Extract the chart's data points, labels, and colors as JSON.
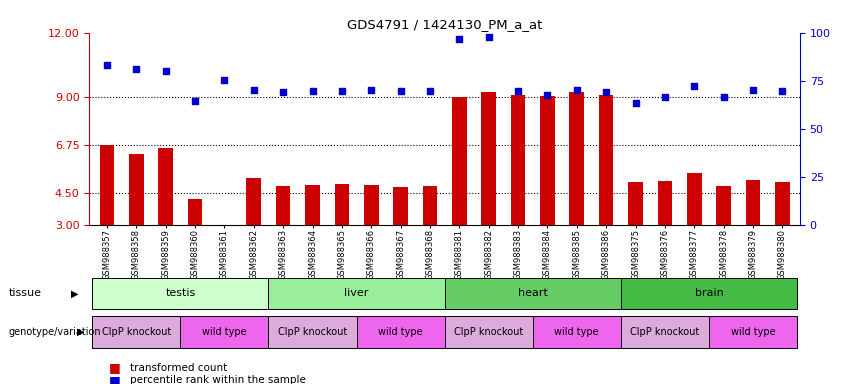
{
  "title": "GDS4791 / 1424130_PM_a_at",
  "samples": [
    "GSM988357",
    "GSM988358",
    "GSM988359",
    "GSM988360",
    "GSM988361",
    "GSM988362",
    "GSM988363",
    "GSM988364",
    "GSM988365",
    "GSM988366",
    "GSM988367",
    "GSM988368",
    "GSM988381",
    "GSM988382",
    "GSM988383",
    "GSM988384",
    "GSM988385",
    "GSM988386",
    "GSM988375",
    "GSM988376",
    "GSM988377",
    "GSM988378",
    "GSM988379",
    "GSM988380"
  ],
  "bar_values": [
    6.75,
    6.3,
    6.6,
    4.2,
    3.0,
    5.2,
    4.8,
    4.85,
    4.9,
    4.85,
    4.75,
    4.8,
    9.0,
    9.2,
    9.1,
    9.05,
    9.2,
    9.1,
    5.0,
    5.05,
    5.4,
    4.8,
    5.1,
    5.0
  ],
  "scatter_values": [
    10.5,
    10.3,
    10.2,
    8.8,
    9.8,
    9.3,
    9.2,
    9.25,
    9.25,
    9.3,
    9.25,
    9.25,
    11.7,
    11.8,
    9.25,
    9.1,
    9.3,
    9.2,
    8.7,
    9.0,
    9.5,
    9.0,
    9.3,
    9.25
  ],
  "ylim_left": [
    3,
    12
  ],
  "ylim_right": [
    0,
    100
  ],
  "yticks_left": [
    3,
    4.5,
    6.75,
    9,
    12
  ],
  "yticks_right": [
    0,
    25,
    50,
    75,
    100
  ],
  "hlines": [
    4.5,
    6.75,
    9.0
  ],
  "bar_color": "#cc0000",
  "scatter_color": "#0000cc",
  "bg_color": "#ffffff",
  "tissues": [
    {
      "label": "testis",
      "start": 0,
      "end": 5,
      "color": "#ccffcc"
    },
    {
      "label": "liver",
      "start": 6,
      "end": 11,
      "color": "#99ee99"
    },
    {
      "label": "heart",
      "start": 12,
      "end": 17,
      "color": "#66cc66"
    },
    {
      "label": "brain",
      "start": 18,
      "end": 23,
      "color": "#44bb44"
    }
  ],
  "genotypes": [
    {
      "label": "ClpP knockout",
      "start": 0,
      "end": 2,
      "color": "#ddaadd"
    },
    {
      "label": "wild type",
      "start": 3,
      "end": 5,
      "color": "#ee66ee"
    },
    {
      "label": "ClpP knockout",
      "start": 6,
      "end": 8,
      "color": "#ddaadd"
    },
    {
      "label": "wild type",
      "start": 9,
      "end": 11,
      "color": "#ee66ee"
    },
    {
      "label": "ClpP knockout",
      "start": 12,
      "end": 14,
      "color": "#ddaadd"
    },
    {
      "label": "wild type",
      "start": 15,
      "end": 17,
      "color": "#ee66ee"
    },
    {
      "label": "ClpP knockout",
      "start": 18,
      "end": 20,
      "color": "#ddaadd"
    },
    {
      "label": "wild type",
      "start": 21,
      "end": 23,
      "color": "#ee66ee"
    }
  ],
  "legend_bar_label": "transformed count",
  "legend_scatter_label": "percentile rank within the sample",
  "tissue_label": "tissue",
  "genotype_label": "genotype/variation",
  "axis_color_left": "#cc0000",
  "axis_color_right": "#0000cc"
}
